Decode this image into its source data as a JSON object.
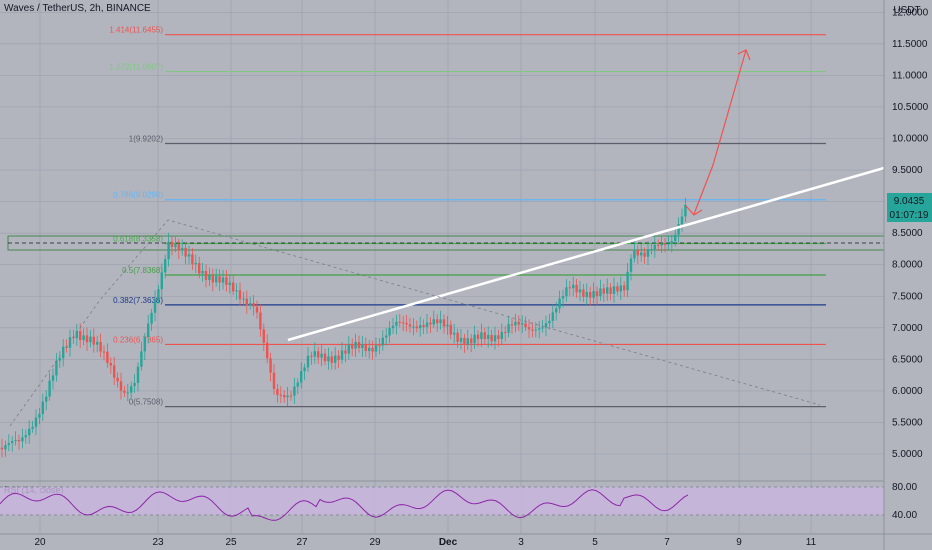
{
  "symbol_title": "Waves / TetherUS, 2h, BINANCE",
  "currency": "USDT",
  "price_badge": "9.0435",
  "countdown_badge": "01:07:19",
  "rsi_title": "RSI (14, close)",
  "colors": {
    "background": "#b2b5be",
    "grid": "#9aa0ab",
    "up": "#26a69a",
    "down": "#ef5350",
    "badge": "#26a69a",
    "rsi_band": "#c9b7e0",
    "rsi_line": "#8e24aa",
    "trend": "#ffffff",
    "arrow": "#ef5350"
  },
  "price_axis": {
    "labels": [
      "12.0000",
      "11.5000",
      "11.0000",
      "10.5000",
      "10.0000",
      "9.5000",
      "9.0000",
      "8.5000",
      "8.0000",
      "7.5000",
      "7.0000",
      "6.5000",
      "6.0000",
      "5.5000",
      "5.0000"
    ],
    "values": [
      12.0,
      11.5,
      11.0,
      10.5,
      10.0,
      9.5,
      9.0,
      8.5,
      8.0,
      7.5,
      7.0,
      6.5,
      6.0,
      5.5,
      5.0
    ]
  },
  "rsi_axis": {
    "labels": [
      "80.00",
      "40.00"
    ],
    "values": [
      80,
      40
    ]
  },
  "time_axis": {
    "labels": [
      "20",
      "23",
      "25",
      "27",
      "29",
      "Dec",
      "3",
      "5",
      "7",
      "9",
      "11"
    ]
  },
  "fib_levels": [
    {
      "label": "1.414(11.6455)",
      "value": 11.6455,
      "color": "#ef5350"
    },
    {
      "label": "1.272(11.0607)",
      "value": 11.0607,
      "color": "#81c784"
    },
    {
      "label": "1(9.9202)",
      "value": 9.9202,
      "color": "#5d606b"
    },
    {
      "label": "0.786(9.0296)",
      "value": 9.0296,
      "color": "#64b5f6"
    },
    {
      "label": "0.618(8.3358)",
      "value": 8.3358,
      "color": "#4caf50"
    },
    {
      "label": "0.5(7.8368)",
      "value": 7.8368,
      "color": "#43a047"
    },
    {
      "label": "0.382(7.3638)",
      "value": 7.3638,
      "color": "#1e3a8a"
    },
    {
      "label": "0.236(6.7365)",
      "value": 6.7365,
      "color": "#ef5350"
    },
    {
      "label": "0(5.7508)",
      "value": 5.7508,
      "color": "#5d606b"
    }
  ]
}
